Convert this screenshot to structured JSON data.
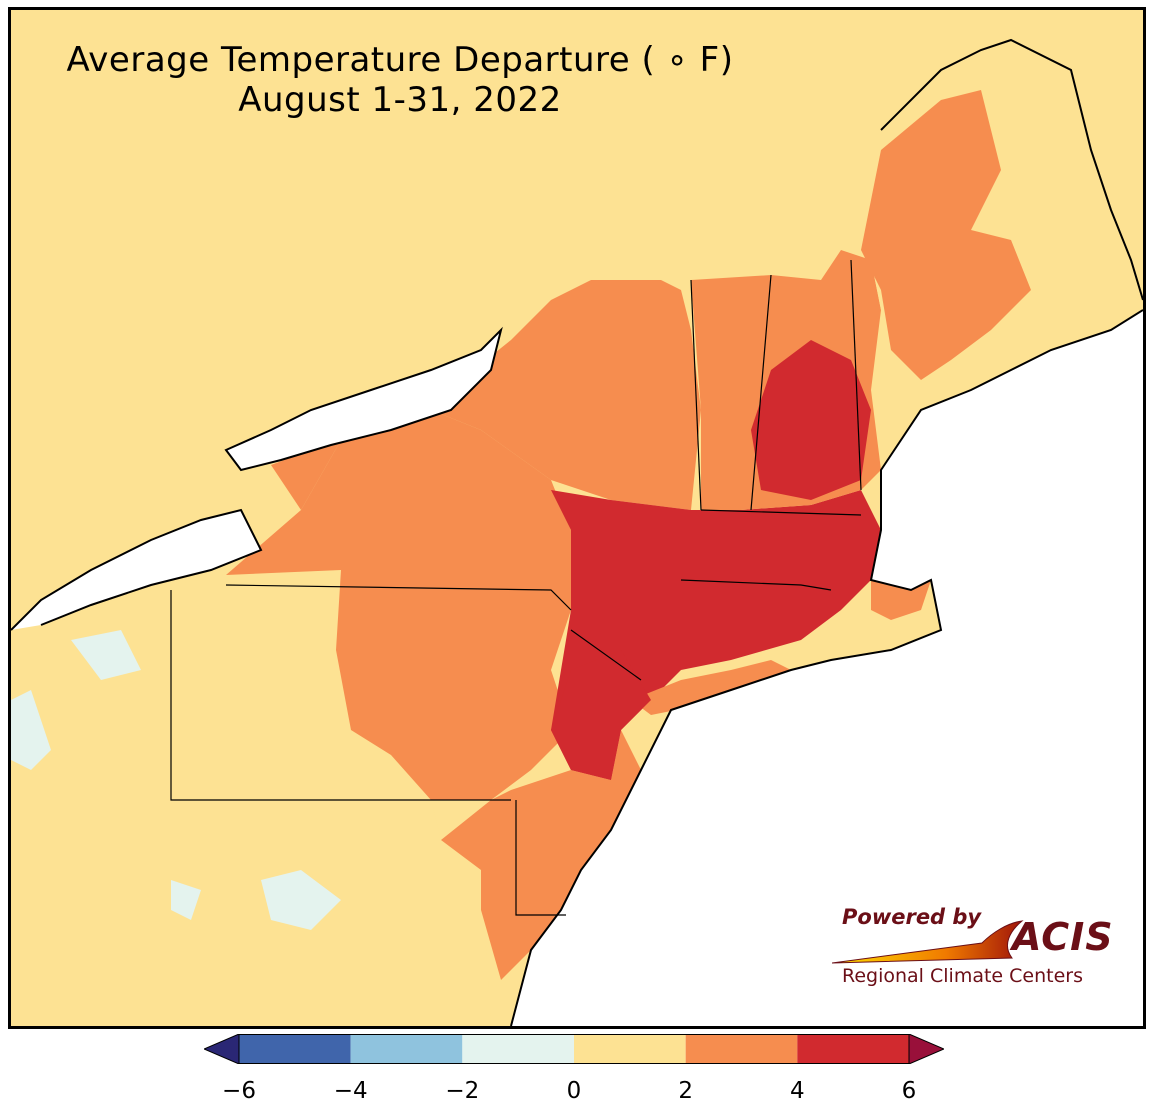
{
  "title": {
    "line1": "Average Temperature Departure ( ∘ F)",
    "line2": "August 1-31, 2022"
  },
  "colors": {
    "ocean": "#ffffff",
    "lake": "#ffffff",
    "class_n6_n4": "#4065ab",
    "class_n4_n2": "#8fc3de",
    "class_n2_0": "#e4f3ee",
    "class_0_2": "#fde293",
    "class_2_4": "#f68d4f",
    "class_4_6": "#d12a2f",
    "class_gt6": "#99103a",
    "class_lt_n6": "#2a2775",
    "state_border": "#000000",
    "county_border": "#a8a8a8"
  },
  "colorbar": {
    "ticks": [
      "−6",
      "−4",
      "−2",
      "0",
      "2",
      "4",
      "6"
    ],
    "tick_values": [
      -6,
      -4,
      -2,
      0,
      2,
      4,
      6
    ],
    "segments": [
      {
        "from": -6,
        "to": -4,
        "color": "#4065ab"
      },
      {
        "from": -4,
        "to": -2,
        "color": "#8fc3de"
      },
      {
        "from": -2,
        "to": 0,
        "color": "#e4f3ee"
      },
      {
        "from": 0,
        "to": 2,
        "color": "#fde293"
      },
      {
        "from": 2,
        "to": 4,
        "color": "#f68d4f"
      },
      {
        "from": 4,
        "to": 6,
        "color": "#d12a2f"
      }
    ],
    "extend_low_color": "#2a2775",
    "extend_high_color": "#99103a"
  },
  "logo": {
    "powered_by": "Powered by",
    "brand": "ACIS",
    "subtitle": "Regional Climate Centers"
  }
}
